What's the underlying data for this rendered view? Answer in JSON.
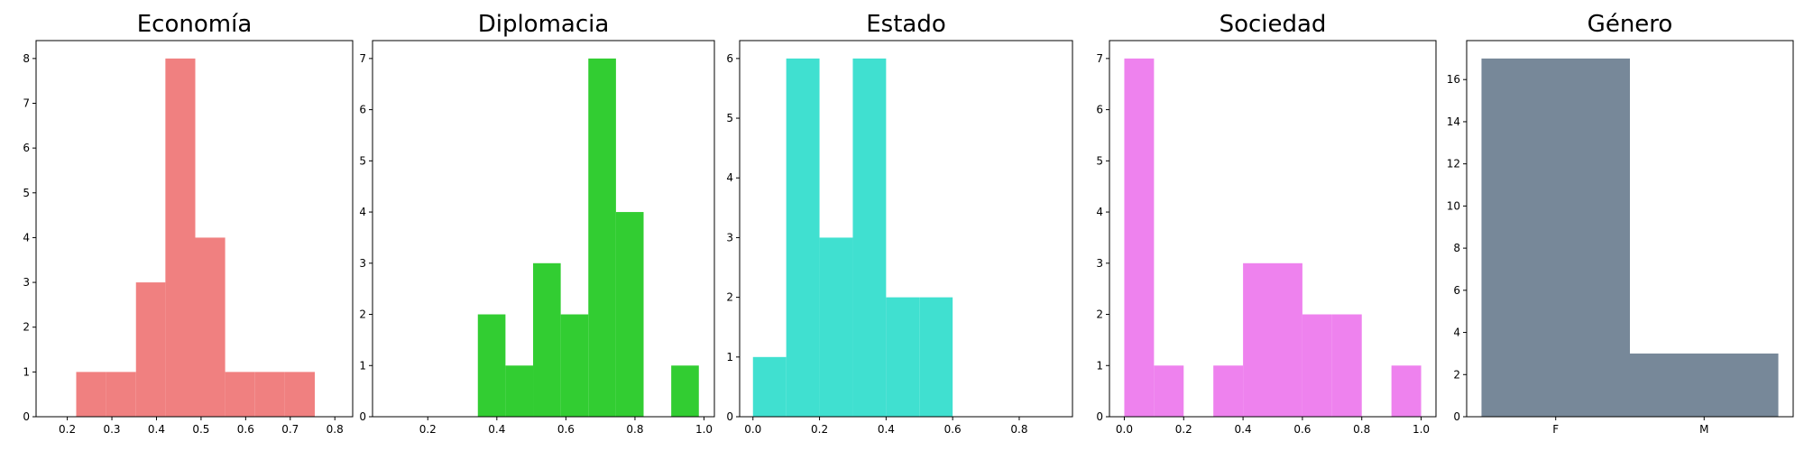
{
  "chart_data": [
    {
      "type": "bar",
      "title": "Economía",
      "color": "#f08080",
      "xlim": [
        0.13,
        0.84
      ],
      "ylim": [
        0,
        8.4
      ],
      "xticks": [
        0.2,
        0.3,
        0.4,
        0.5,
        0.6,
        0.7,
        0.8
      ],
      "xtick_labels": [
        "0.2",
        "0.3",
        "0.4",
        "0.5",
        "0.6",
        "0.7",
        "0.8"
      ],
      "yticks": [
        0,
        1,
        2,
        3,
        4,
        5,
        6,
        7,
        8
      ],
      "ytick_labels": [
        "0",
        "1",
        "2",
        "3",
        "4",
        "5",
        "6",
        "7",
        "8"
      ],
      "bins": [
        {
          "x0": 0.22,
          "x1": 0.287,
          "value": 1
        },
        {
          "x0": 0.287,
          "x1": 0.354,
          "value": 1
        },
        {
          "x0": 0.354,
          "x1": 0.42,
          "value": 3
        },
        {
          "x0": 0.42,
          "x1": 0.487,
          "value": 8
        },
        {
          "x0": 0.487,
          "x1": 0.554,
          "value": 4
        },
        {
          "x0": 0.554,
          "x1": 0.621,
          "value": 1
        },
        {
          "x0": 0.621,
          "x1": 0.688,
          "value": 1
        },
        {
          "x0": 0.688,
          "x1": 0.755,
          "value": 1
        }
      ]
    },
    {
      "type": "bar",
      "title": "Diplomacia",
      "color": "#32cd32",
      "xlim": [
        0.04,
        1.03
      ],
      "ylim": [
        0,
        7.35
      ],
      "xticks": [
        0.2,
        0.4,
        0.6,
        0.8,
        1.0
      ],
      "xtick_labels": [
        "0.2",
        "0.4",
        "0.6",
        "0.8",
        "1.0"
      ],
      "yticks": [
        0,
        1,
        2,
        3,
        4,
        5,
        6,
        7
      ],
      "ytick_labels": [
        "0",
        "1",
        "2",
        "3",
        "4",
        "5",
        "6",
        "7"
      ],
      "bins": [
        {
          "x0": 0.345,
          "x1": 0.425,
          "value": 2
        },
        {
          "x0": 0.425,
          "x1": 0.505,
          "value": 1
        },
        {
          "x0": 0.505,
          "x1": 0.585,
          "value": 3
        },
        {
          "x0": 0.585,
          "x1": 0.665,
          "value": 2
        },
        {
          "x0": 0.665,
          "x1": 0.745,
          "value": 7
        },
        {
          "x0": 0.745,
          "x1": 0.825,
          "value": 4
        },
        {
          "x0": 0.825,
          "x1": 0.905,
          "value": 0
        },
        {
          "x0": 0.905,
          "x1": 0.985,
          "value": 1
        }
      ]
    },
    {
      "type": "bar",
      "title": "Estado",
      "color": "#40e0d0",
      "xlim": [
        -0.04,
        0.96
      ],
      "ylim": [
        0,
        6.3
      ],
      "xticks": [
        0.0,
        0.2,
        0.4,
        0.6,
        0.8
      ],
      "xtick_labels": [
        "0.0",
        "0.2",
        "0.4",
        "0.6",
        "0.8"
      ],
      "yticks": [
        0,
        1,
        2,
        3,
        4,
        5,
        6
      ],
      "ytick_labels": [
        "0",
        "1",
        "2",
        "3",
        "4",
        "5",
        "6"
      ],
      "bins": [
        {
          "x0": 0.0,
          "x1": 0.1,
          "value": 1
        },
        {
          "x0": 0.1,
          "x1": 0.2,
          "value": 6
        },
        {
          "x0": 0.2,
          "x1": 0.3,
          "value": 3
        },
        {
          "x0": 0.3,
          "x1": 0.4,
          "value": 6
        },
        {
          "x0": 0.4,
          "x1": 0.5,
          "value": 2
        },
        {
          "x0": 0.5,
          "x1": 0.6,
          "value": 2
        }
      ]
    },
    {
      "type": "bar",
      "title": "Sociedad",
      "color": "#ee82ee",
      "xlim": [
        -0.05,
        1.05
      ],
      "ylim": [
        0,
        7.35
      ],
      "xticks": [
        0.0,
        0.2,
        0.4,
        0.6,
        0.8,
        1.0
      ],
      "xtick_labels": [
        "0.0",
        "0.2",
        "0.4",
        "0.6",
        "0.8",
        "1.0"
      ],
      "yticks": [
        0,
        1,
        2,
        3,
        4,
        5,
        6,
        7
      ],
      "ytick_labels": [
        "0",
        "1",
        "2",
        "3",
        "4",
        "5",
        "6",
        "7"
      ],
      "bins": [
        {
          "x0": 0.0,
          "x1": 0.1,
          "value": 7
        },
        {
          "x0": 0.1,
          "x1": 0.2,
          "value": 1
        },
        {
          "x0": 0.2,
          "x1": 0.3,
          "value": 0
        },
        {
          "x0": 0.3,
          "x1": 0.4,
          "value": 1
        },
        {
          "x0": 0.4,
          "x1": 0.5,
          "value": 3
        },
        {
          "x0": 0.5,
          "x1": 0.6,
          "value": 3
        },
        {
          "x0": 0.6,
          "x1": 0.7,
          "value": 2
        },
        {
          "x0": 0.7,
          "x1": 0.8,
          "value": 2
        },
        {
          "x0": 0.8,
          "x1": 0.9,
          "value": 0
        },
        {
          "x0": 0.9,
          "x1": 1.0,
          "value": 1
        }
      ]
    },
    {
      "type": "bar",
      "title": "Género",
      "color": "#778899",
      "xlim": [
        -0.1,
        2.1
      ],
      "ylim": [
        0,
        17.85
      ],
      "xticks": [
        0.5,
        1.5
      ],
      "xtick_labels": [
        "F",
        "M"
      ],
      "yticks": [
        0,
        2,
        4,
        6,
        8,
        10,
        12,
        14,
        16
      ],
      "ytick_labels": [
        "0",
        "2",
        "4",
        "6",
        "8",
        "10",
        "12",
        "14",
        "16"
      ],
      "bins": [
        {
          "x0": 0.0,
          "x1": 1.0,
          "value": 17
        },
        {
          "x0": 1.0,
          "x1": 2.0,
          "value": 3
        }
      ]
    }
  ]
}
